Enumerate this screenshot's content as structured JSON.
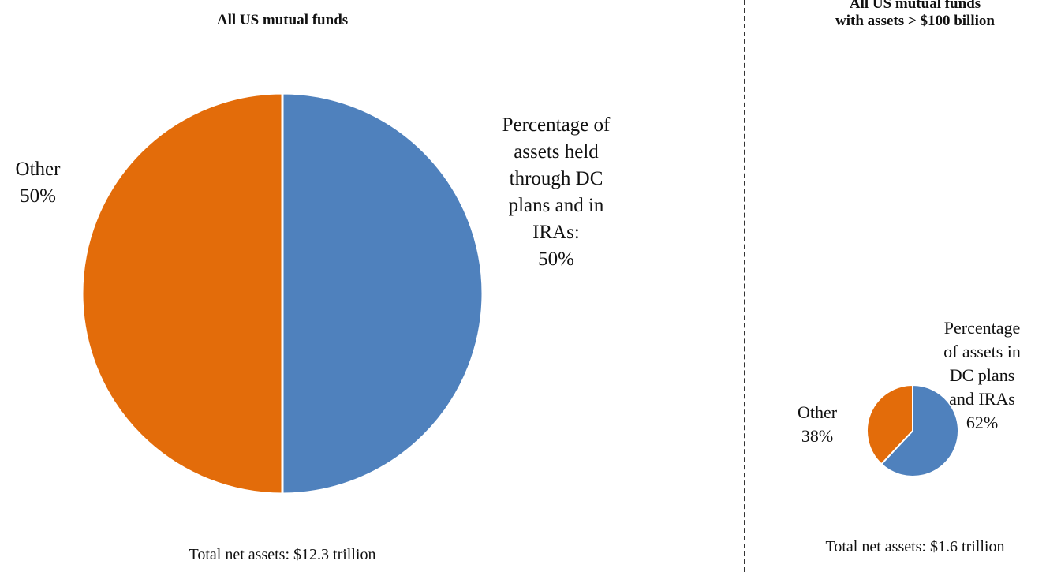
{
  "chart_data": [
    {
      "type": "pie",
      "title": "All US mutual funds",
      "footer": "Total net assets: $12.3 trillion",
      "colors": [
        "#4f81bd",
        "#e36c0a"
      ],
      "slices": [
        {
          "label_lines": [
            "Percentage of",
            "assets held",
            "through DC",
            "plans and in",
            "IRAs:",
            "50%"
          ],
          "value": 50
        },
        {
          "label_lines": [
            "Other",
            "50%"
          ],
          "value": 50
        }
      ]
    },
    {
      "type": "pie",
      "title_lines": [
        "All US mutual funds",
        "with assets > $100 billion"
      ],
      "footer": "Total net assets: $1.6 trillion",
      "colors": [
        "#4f81bd",
        "#e36c0a"
      ],
      "slices": [
        {
          "label_lines": [
            "Percentage",
            "of assets in",
            "DC plans",
            "and IRAs",
            "62%"
          ],
          "value": 62
        },
        {
          "label_lines": [
            "Other",
            "38%"
          ],
          "value": 38
        }
      ]
    }
  ]
}
